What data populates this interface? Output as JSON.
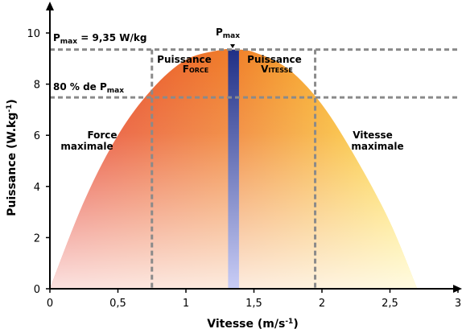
{
  "chart_data": {
    "type": "area",
    "xlabel": "Vitesse (m/s",
    "xlabel_sup": "-1",
    "xlabel_end": ")",
    "ylabel": "Puissance (W.kg",
    "ylabel_sup": "-1",
    "ylabel_end": ")",
    "xlim": [
      0,
      3
    ],
    "ylim": [
      0,
      10
    ],
    "x_ticks": [
      0,
      0.5,
      1,
      1.5,
      2,
      2.5,
      3
    ],
    "x_tick_labels": [
      "0",
      "0,5",
      "1",
      "1,5",
      "2",
      "2,5",
      "3"
    ],
    "y_ticks": [
      0,
      2,
      4,
      6,
      8,
      10
    ],
    "y_tick_labels": [
      "0",
      "2",
      "4",
      "6",
      "8",
      "10"
    ],
    "curve": {
      "x": [
        0,
        0.25,
        0.5,
        0.75,
        1.0,
        1.25,
        1.35,
        1.5,
        1.75,
        2.0,
        2.25,
        2.5,
        2.7
      ],
      "y": [
        0,
        3.4,
        6.0,
        7.8,
        8.95,
        9.33,
        9.35,
        9.25,
        8.6,
        7.2,
        5.1,
        2.6,
        0
      ]
    },
    "pmax": {
      "x": 1.35,
      "y": 9.35,
      "band_width": 0.08,
      "label_main": "P",
      "label_sub": "max"
    },
    "pmax_line": {
      "prefix": "P",
      "sub": "max",
      "suffix": " = 9,35 W/kg"
    },
    "p80_line": {
      "y": 7.48,
      "prefix": "80 % de P",
      "sub": "max"
    },
    "box_x": [
      0.75,
      1.95
    ],
    "annotations": {
      "force_max": [
        "Force",
        "maximale"
      ],
      "vitesse_max": [
        "Vitesse",
        "maximale"
      ],
      "puissance_force": [
        "Puissance",
        "Force"
      ],
      "puissance_vitesse": [
        "Puissance",
        "Vitesse"
      ]
    },
    "colors": {
      "left": "#e53a2e",
      "center": "#f07f2a",
      "right": "#ffe43a",
      "pmax_band_top": "#1f2f86",
      "pmax_band_bottom": "#c9cdf6",
      "dashed": "#8a8a8a"
    }
  }
}
